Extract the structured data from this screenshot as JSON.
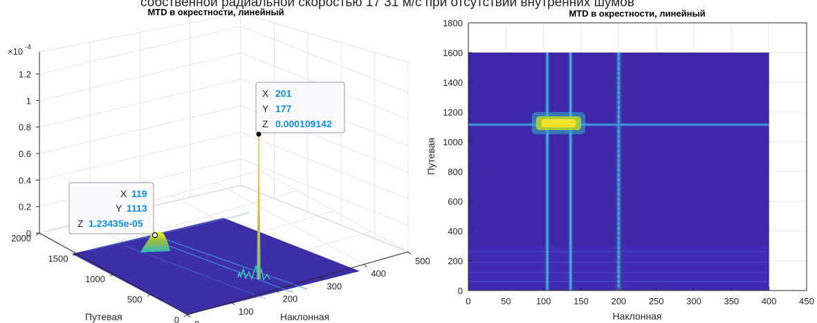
{
  "figure": {
    "suptitle": "собственной радиальной скоростью 17 31 м/с при отсутствии внутренних шумов"
  },
  "chart_data": [
    {
      "type": "surface3d",
      "title": "MTD в окрестности, линейный",
      "xlabel": "Наклонная",
      "ylabel": "Путевая",
      "zlabel": "",
      "exponent_label": "×10",
      "exponent": "-4",
      "xlim": [
        0,
        500
      ],
      "ylim": [
        0,
        2000
      ],
      "zlim": [
        0,
        1.2
      ],
      "xticks": [
        "0",
        "100",
        "200",
        "300",
        "400",
        "500"
      ],
      "yticks": [
        "0",
        "500",
        "1000",
        "1500",
        "2000"
      ],
      "zticks": [
        "0",
        "0.2",
        "0.4",
        "0.6",
        "0.8",
        "1",
        "1.2"
      ],
      "surface_extent": {
        "x": [
          0,
          400
        ],
        "y": [
          0,
          1600
        ]
      },
      "grid": true,
      "colormap": "parula",
      "peaks": [
        {
          "x": 201,
          "y": 177,
          "z": 0.000109142
        },
        {
          "x": 119,
          "y": 1113,
          "z": 1.23435e-05
        }
      ],
      "datatips": [
        {
          "x": "201",
          "y": "177",
          "z": "0.000109142"
        },
        {
          "x": "119",
          "y": "1113",
          "z": "1.23435e-05"
        }
      ]
    },
    {
      "type": "heatmap",
      "title": "MTD в окрестности, линейный",
      "xlabel": "Наклонная",
      "ylabel": "Путевая",
      "xlim": [
        0,
        450
      ],
      "ylim": [
        0,
        1800
      ],
      "xticks": [
        "0",
        "50",
        "100",
        "150",
        "200",
        "250",
        "300",
        "350",
        "400",
        "450"
      ],
      "yticks": [
        "0",
        "200",
        "400",
        "600",
        "800",
        "1000",
        "1200",
        "1400",
        "1600",
        "1800"
      ],
      "image_extent": {
        "x": [
          0,
          400
        ],
        "y": [
          0,
          1600
        ]
      },
      "grid": true,
      "colormap": "parula",
      "background_color": "#3e26a8",
      "features": {
        "vertical_lines_x": [
          105,
          136,
          200
        ],
        "horizontal_line_y": 1115,
        "hotspot": {
          "x_range": [
            90,
            150
          ],
          "y": 1125
        }
      }
    }
  ],
  "colors": {
    "parula_low": "#3e26a8",
    "parula_mid": "#2bb8c4",
    "parula_high": "#f9fb0e",
    "datatip_value": "#0a8ff0"
  }
}
